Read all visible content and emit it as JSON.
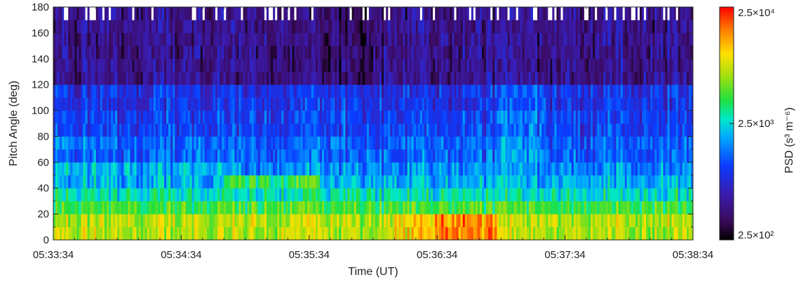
{
  "chart_data": {
    "type": "heatmap",
    "title": "",
    "xlabel": "Time (UT)",
    "ylabel": "Pitch Angle (deg)",
    "x_tick_labels": [
      "05:33:34",
      "05:34:34",
      "05:35:34",
      "05:36:34",
      "05:37:34",
      "05:38:34"
    ],
    "x_tick_seconds": [
      0,
      60,
      120,
      180,
      240,
      300
    ],
    "xlim_seconds": [
      0,
      300
    ],
    "y_tick_labels": [
      "0",
      "20",
      "40",
      "60",
      "80",
      "100",
      "120",
      "140",
      "160",
      "180"
    ],
    "y_tick_values": [
      0,
      20,
      40,
      60,
      80,
      100,
      120,
      140,
      160,
      180
    ],
    "ylim": [
      0,
      180
    ],
    "pitch_bins": [
      5,
      15,
      25,
      35,
      45,
      55,
      65,
      75,
      85,
      95,
      105,
      115,
      125,
      135,
      145,
      155,
      165,
      175
    ],
    "colorbar": {
      "label": "PSD (s³ m⁻⁶)",
      "scale": "log",
      "range": [
        250,
        25000
      ],
      "tick_labels": [
        "2.5×10²",
        "2.5×10³",
        "2.5×10⁴"
      ],
      "tick_values": [
        250,
        2500,
        25000
      ]
    },
    "grid": false,
    "legend": "none"
  }
}
